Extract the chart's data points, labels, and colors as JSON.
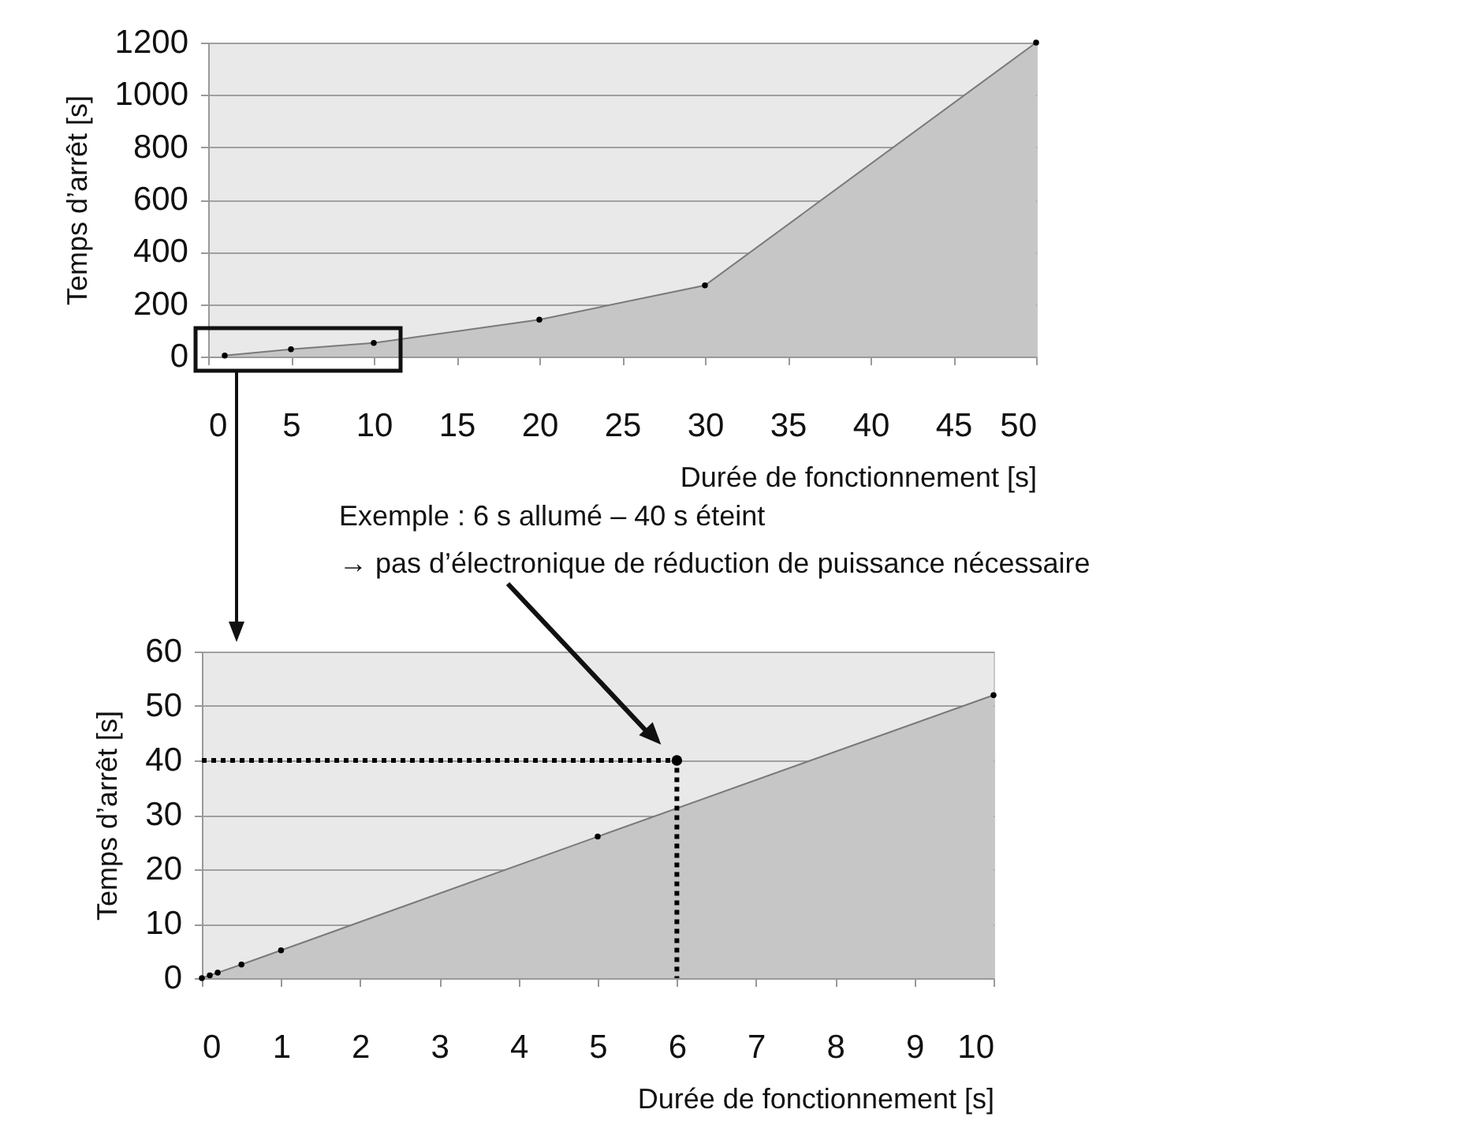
{
  "chart_data": [
    {
      "type": "area",
      "xlabel": "Durée de fonctionnement [s]",
      "ylabel": "Temps d’arrêt [s]",
      "xlim": [
        0,
        50
      ],
      "xticks": [
        0,
        5,
        10,
        15,
        20,
        25,
        30,
        35,
        40,
        45,
        50
      ],
      "ylim": [
        0,
        1200
      ],
      "yticks": [
        0,
        200,
        400,
        600,
        800,
        1000,
        1200
      ],
      "grid": "y",
      "marker": "circle",
      "series": [
        {
          "color": "#c6c6c6",
          "x": [
            1,
            5,
            10,
            20,
            30,
            50
          ],
          "values": [
            4,
            28,
            52,
            141,
            272,
            1200
          ]
        }
      ]
    },
    {
      "type": "area",
      "xlabel": "Durée de fonctionnement [s]",
      "ylabel": "Temps d’arrêt [s]",
      "xlim": [
        0,
        10
      ],
      "xticks": [
        0,
        1,
        2,
        3,
        4,
        5,
        6,
        7,
        8,
        9,
        10
      ],
      "ylim": [
        0,
        60
      ],
      "yticks": [
        0,
        10,
        20,
        30,
        40,
        50,
        60
      ],
      "grid": "y",
      "marker": "circle",
      "series": [
        {
          "color": "#c6c6c6",
          "x": [
            0,
            0.1,
            0.2,
            0.5,
            1,
            5,
            10
          ],
          "values": [
            0,
            0.5,
            1,
            2.5,
            5.1,
            26,
            52
          ]
        },
        {
          "type": "line",
          "color": "#000000",
          "line_style": "dotted",
          "marker": "none",
          "x": [
            0,
            6,
            6
          ],
          "values": [
            40,
            40,
            0
          ]
        },
        {
          "type": "scatter",
          "color": "#000000",
          "x": [
            6
          ],
          "values": [
            40
          ]
        }
      ],
      "annotations": [
        "Exemple : 6 s allumé – 40 s éteint\n→ pas d’électronique de réduction de puissance nécessaire"
      ]
    }
  ]
}
